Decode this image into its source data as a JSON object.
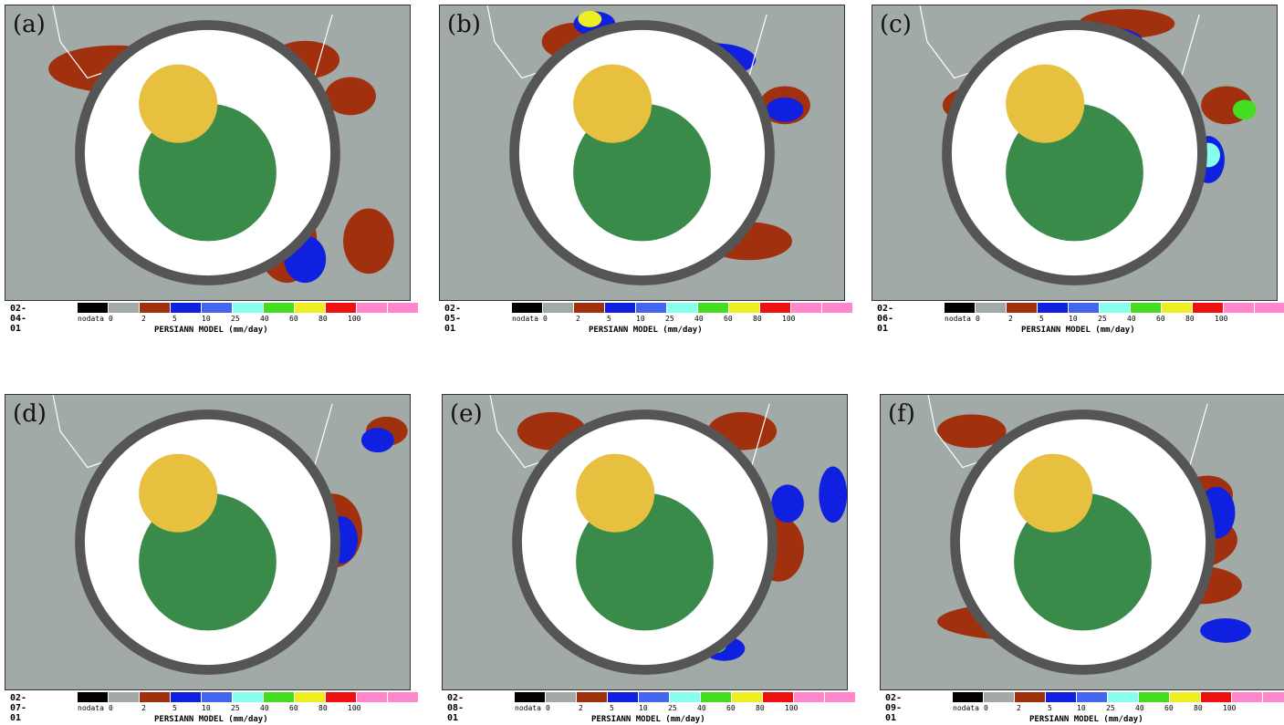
{
  "colorbar": {
    "title": "PERSIANN MODEL (mm/day)",
    "labels": [
      "nodata",
      "0",
      "2",
      "5",
      "10",
      "25",
      "40",
      "60",
      "80",
      "100"
    ],
    "colors": [
      "#000000",
      "#a2aaa8",
      "#a0300e",
      "#1020e0",
      "#4466ee",
      "#88ffee",
      "#44dd22",
      "#eeee22",
      "#ee1111",
      "#ff88cc",
      "#ff88cc"
    ]
  },
  "panels": [
    {
      "label": "(a)",
      "date": "02-04-01"
    },
    {
      "label": "(b)",
      "date": "02-05-01"
    },
    {
      "label": "(c)",
      "date": "02-06-01"
    },
    {
      "label": "(d)",
      "date": "02-07-01"
    },
    {
      "label": "(e)",
      "date": "02-08-01"
    },
    {
      "label": "(f)",
      "date": "02-09-01"
    }
  ]
}
